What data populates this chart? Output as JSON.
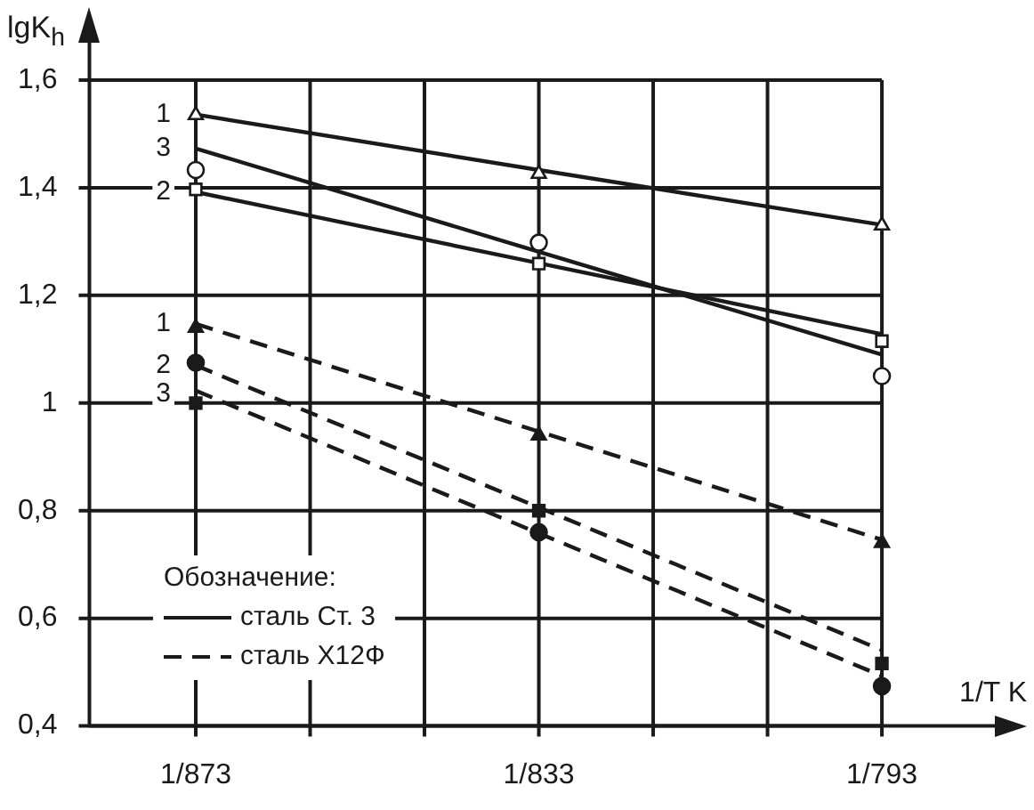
{
  "chart_data": {
    "type": "scatter",
    "ylabel": "lgK$_{h}$",
    "xlabel": "1/T K",
    "grid": true,
    "categories": [
      "1/873",
      null,
      null,
      "1/833",
      null,
      null,
      "1/793"
    ],
    "ylim": [
      0.4,
      1.6
    ],
    "yticks": [
      {
        "value": 0.4,
        "label": "0,4"
      },
      {
        "value": 0.6,
        "label": "0,6"
      },
      {
        "value": 0.8,
        "label": "0,8"
      },
      1,
      {
        "value": 1.2,
        "label": "1,2"
      },
      {
        "value": 1.4,
        "label": "1,4"
      },
      {
        "value": 1.6,
        "label": "1,6"
      }
    ],
    "series": [
      {
        "type": "scatter",
        "marker": "triangle",
        "line_style": "solid",
        "color": "#1a1a1a",
        "values": [
          1.535,
          null,
          null,
          1.426,
          null,
          null,
          1.33
        ]
      },
      {
        "type": "scatter",
        "marker": "square",
        "line_style": "solid",
        "color": "#1a1a1a",
        "values": [
          1.397,
          null,
          null,
          1.259,
          null,
          null,
          1.115
        ]
      },
      {
        "type": "scatter",
        "marker": "circle",
        "line_style": "solid",
        "color": "#1a1a1a",
        "values": [
          1.433,
          null,
          null,
          1.298,
          null,
          null,
          1.05
        ]
      },
      {
        "type": "scatter",
        "marker": "triangle",
        "line_style": "dashed",
        "color": "#1a1a1a",
        "values": [
          1.14,
          null,
          null,
          0.94,
          null,
          null,
          0.74
        ]
      },
      {
        "type": "scatter",
        "marker": "square",
        "line_style": "dashed",
        "color": "#1a1a1a",
        "values": [
          1.0,
          null,
          null,
          0.8,
          null,
          null,
          0.516
        ]
      },
      {
        "type": "scatter",
        "marker": "circle",
        "line_style": "dashed",
        "color": "#1a1a1a",
        "values": [
          1.075,
          null,
          null,
          0.76,
          null,
          null,
          0.474
        ]
      },
      {
        "type": "line",
        "name": "1",
        "marker": "none",
        "line_style": "solid",
        "color": "#1a1a1a",
        "values": [
          1.536,
          null,
          null,
          1.433,
          null,
          null,
          1.331
        ]
      },
      {
        "type": "line",
        "name": "2",
        "marker": "none",
        "line_style": "solid",
        "color": "#1a1a1a",
        "values": [
          1.392,
          null,
          null,
          1.26,
          null,
          null,
          1.128
        ]
      },
      {
        "type": "line",
        "name": "3",
        "marker": "none",
        "line_style": "solid",
        "color": "#1a1a1a",
        "values": [
          1.473,
          null,
          null,
          1.281,
          null,
          null,
          1.09
        ]
      },
      {
        "type": "line",
        "name": "1",
        "marker": "none",
        "line_style": "dashed",
        "color": "#1a1a1a",
        "values": [
          1.147,
          null,
          null,
          0.947,
          null,
          null,
          0.746
        ]
      },
      {
        "type": "line",
        "name": "2",
        "marker": "none",
        "line_style": "dashed",
        "color": "#1a1a1a",
        "values": [
          1.07,
          null,
          null,
          0.806,
          null,
          null,
          0.541
        ]
      },
      {
        "type": "line",
        "name": "3",
        "marker": "none",
        "line_style": "dashed",
        "color": "#1a1a1a",
        "values": [
          1.023,
          null,
          null,
          0.758,
          null,
          null,
          0.493
        ]
      }
    ],
    "annotations": [
      "Обозначение:",
      "сталь Ст. 3",
      "сталь Х12Ф"
    ]
  }
}
